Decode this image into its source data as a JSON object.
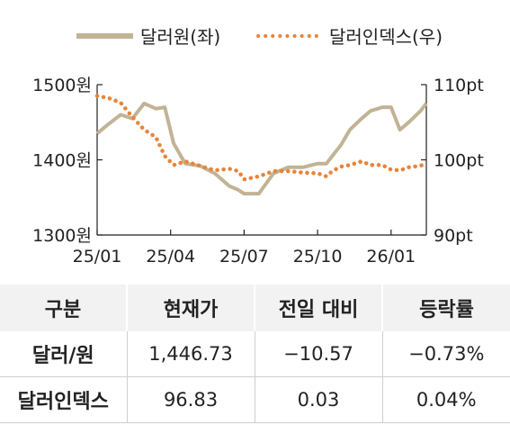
{
  "chart_data": {
    "type": "line",
    "legend_position": "top",
    "grid": false,
    "series": [
      {
        "name": "달러원(좌)",
        "axis": "left",
        "color": "#c2b395",
        "style": "solid",
        "values": [
          [
            2025.0,
            1435
          ],
          [
            2025.04,
            1448
          ],
          [
            2025.08,
            1460
          ],
          [
            2025.12,
            1455
          ],
          [
            2025.16,
            1475
          ],
          [
            2025.2,
            1468
          ],
          [
            2025.23,
            1470
          ],
          [
            2025.26,
            1422
          ],
          [
            2025.3,
            1395
          ],
          [
            2025.35,
            1392
          ],
          [
            2025.4,
            1382
          ],
          [
            2025.45,
            1365
          ],
          [
            2025.48,
            1360
          ],
          [
            2025.5,
            1355
          ],
          [
            2025.55,
            1355
          ],
          [
            2025.6,
            1382
          ],
          [
            2025.65,
            1390
          ],
          [
            2025.7,
            1390
          ],
          [
            2025.75,
            1395
          ],
          [
            2025.78,
            1395
          ],
          [
            2025.8,
            1405
          ],
          [
            2025.83,
            1420
          ],
          [
            2025.86,
            1440
          ],
          [
            2025.9,
            1455
          ],
          [
            2025.93,
            1465
          ],
          [
            2025.97,
            1470
          ],
          [
            2026.0,
            1470
          ],
          [
            2026.03,
            1440
          ],
          [
            2026.06,
            1450
          ],
          [
            2026.1,
            1465
          ],
          [
            2026.12,
            1475
          ]
        ]
      },
      {
        "name": "달러인덱스(우)",
        "axis": "right",
        "color": "#e8843a",
        "style": "dotted",
        "values": [
          [
            2025.0,
            108.5
          ],
          [
            2025.04,
            108.2
          ],
          [
            2025.08,
            107.6
          ],
          [
            2025.12,
            105.7
          ],
          [
            2025.16,
            104.0
          ],
          [
            2025.2,
            103.0
          ],
          [
            2025.23,
            100.5
          ],
          [
            2025.26,
            99.3
          ],
          [
            2025.3,
            99.8
          ],
          [
            2025.35,
            99.2
          ],
          [
            2025.4,
            98.6
          ],
          [
            2025.45,
            98.8
          ],
          [
            2025.48,
            98.5
          ],
          [
            2025.5,
            97.4
          ],
          [
            2025.55,
            97.8
          ],
          [
            2025.6,
            98.5
          ],
          [
            2025.65,
            98.5
          ],
          [
            2025.7,
            98.3
          ],
          [
            2025.75,
            98.2
          ],
          [
            2025.78,
            97.8
          ],
          [
            2025.8,
            98.5
          ],
          [
            2025.83,
            99.1
          ],
          [
            2025.86,
            99.3
          ],
          [
            2025.9,
            99.8
          ],
          [
            2025.93,
            99.3
          ],
          [
            2025.97,
            99.3
          ],
          [
            2026.0,
            98.7
          ],
          [
            2026.03,
            98.6
          ],
          [
            2026.06,
            99.0
          ],
          [
            2026.1,
            99.2
          ],
          [
            2026.12,
            99.6
          ]
        ]
      }
    ],
    "x_ticks": [
      "25/01",
      "25/04",
      "25/07",
      "25/10",
      "26/01"
    ],
    "x_tick_values": [
      2025.0,
      2025.25,
      2025.5,
      2025.75,
      2026.0
    ],
    "xlim": [
      2025.0,
      2026.12
    ],
    "y_left": {
      "ticks": [
        "1500원",
        "1400원",
        "1300원"
      ],
      "tick_values": [
        1500,
        1400,
        1300
      ],
      "lim": [
        1300,
        1500
      ]
    },
    "y_right": {
      "ticks": [
        "110pt",
        "100pt",
        "90pt"
      ],
      "tick_values": [
        110,
        100,
        90
      ],
      "lim": [
        90,
        110
      ]
    }
  },
  "table": {
    "headers": [
      "구분",
      "현재가",
      "전일 대비",
      "등락률"
    ],
    "rows": [
      [
        "달러/원",
        "1,446.73",
        "−10.57",
        "−0.73%"
      ],
      [
        "달러인덱스",
        "96.83",
        "0.03",
        "0.04%"
      ]
    ]
  }
}
